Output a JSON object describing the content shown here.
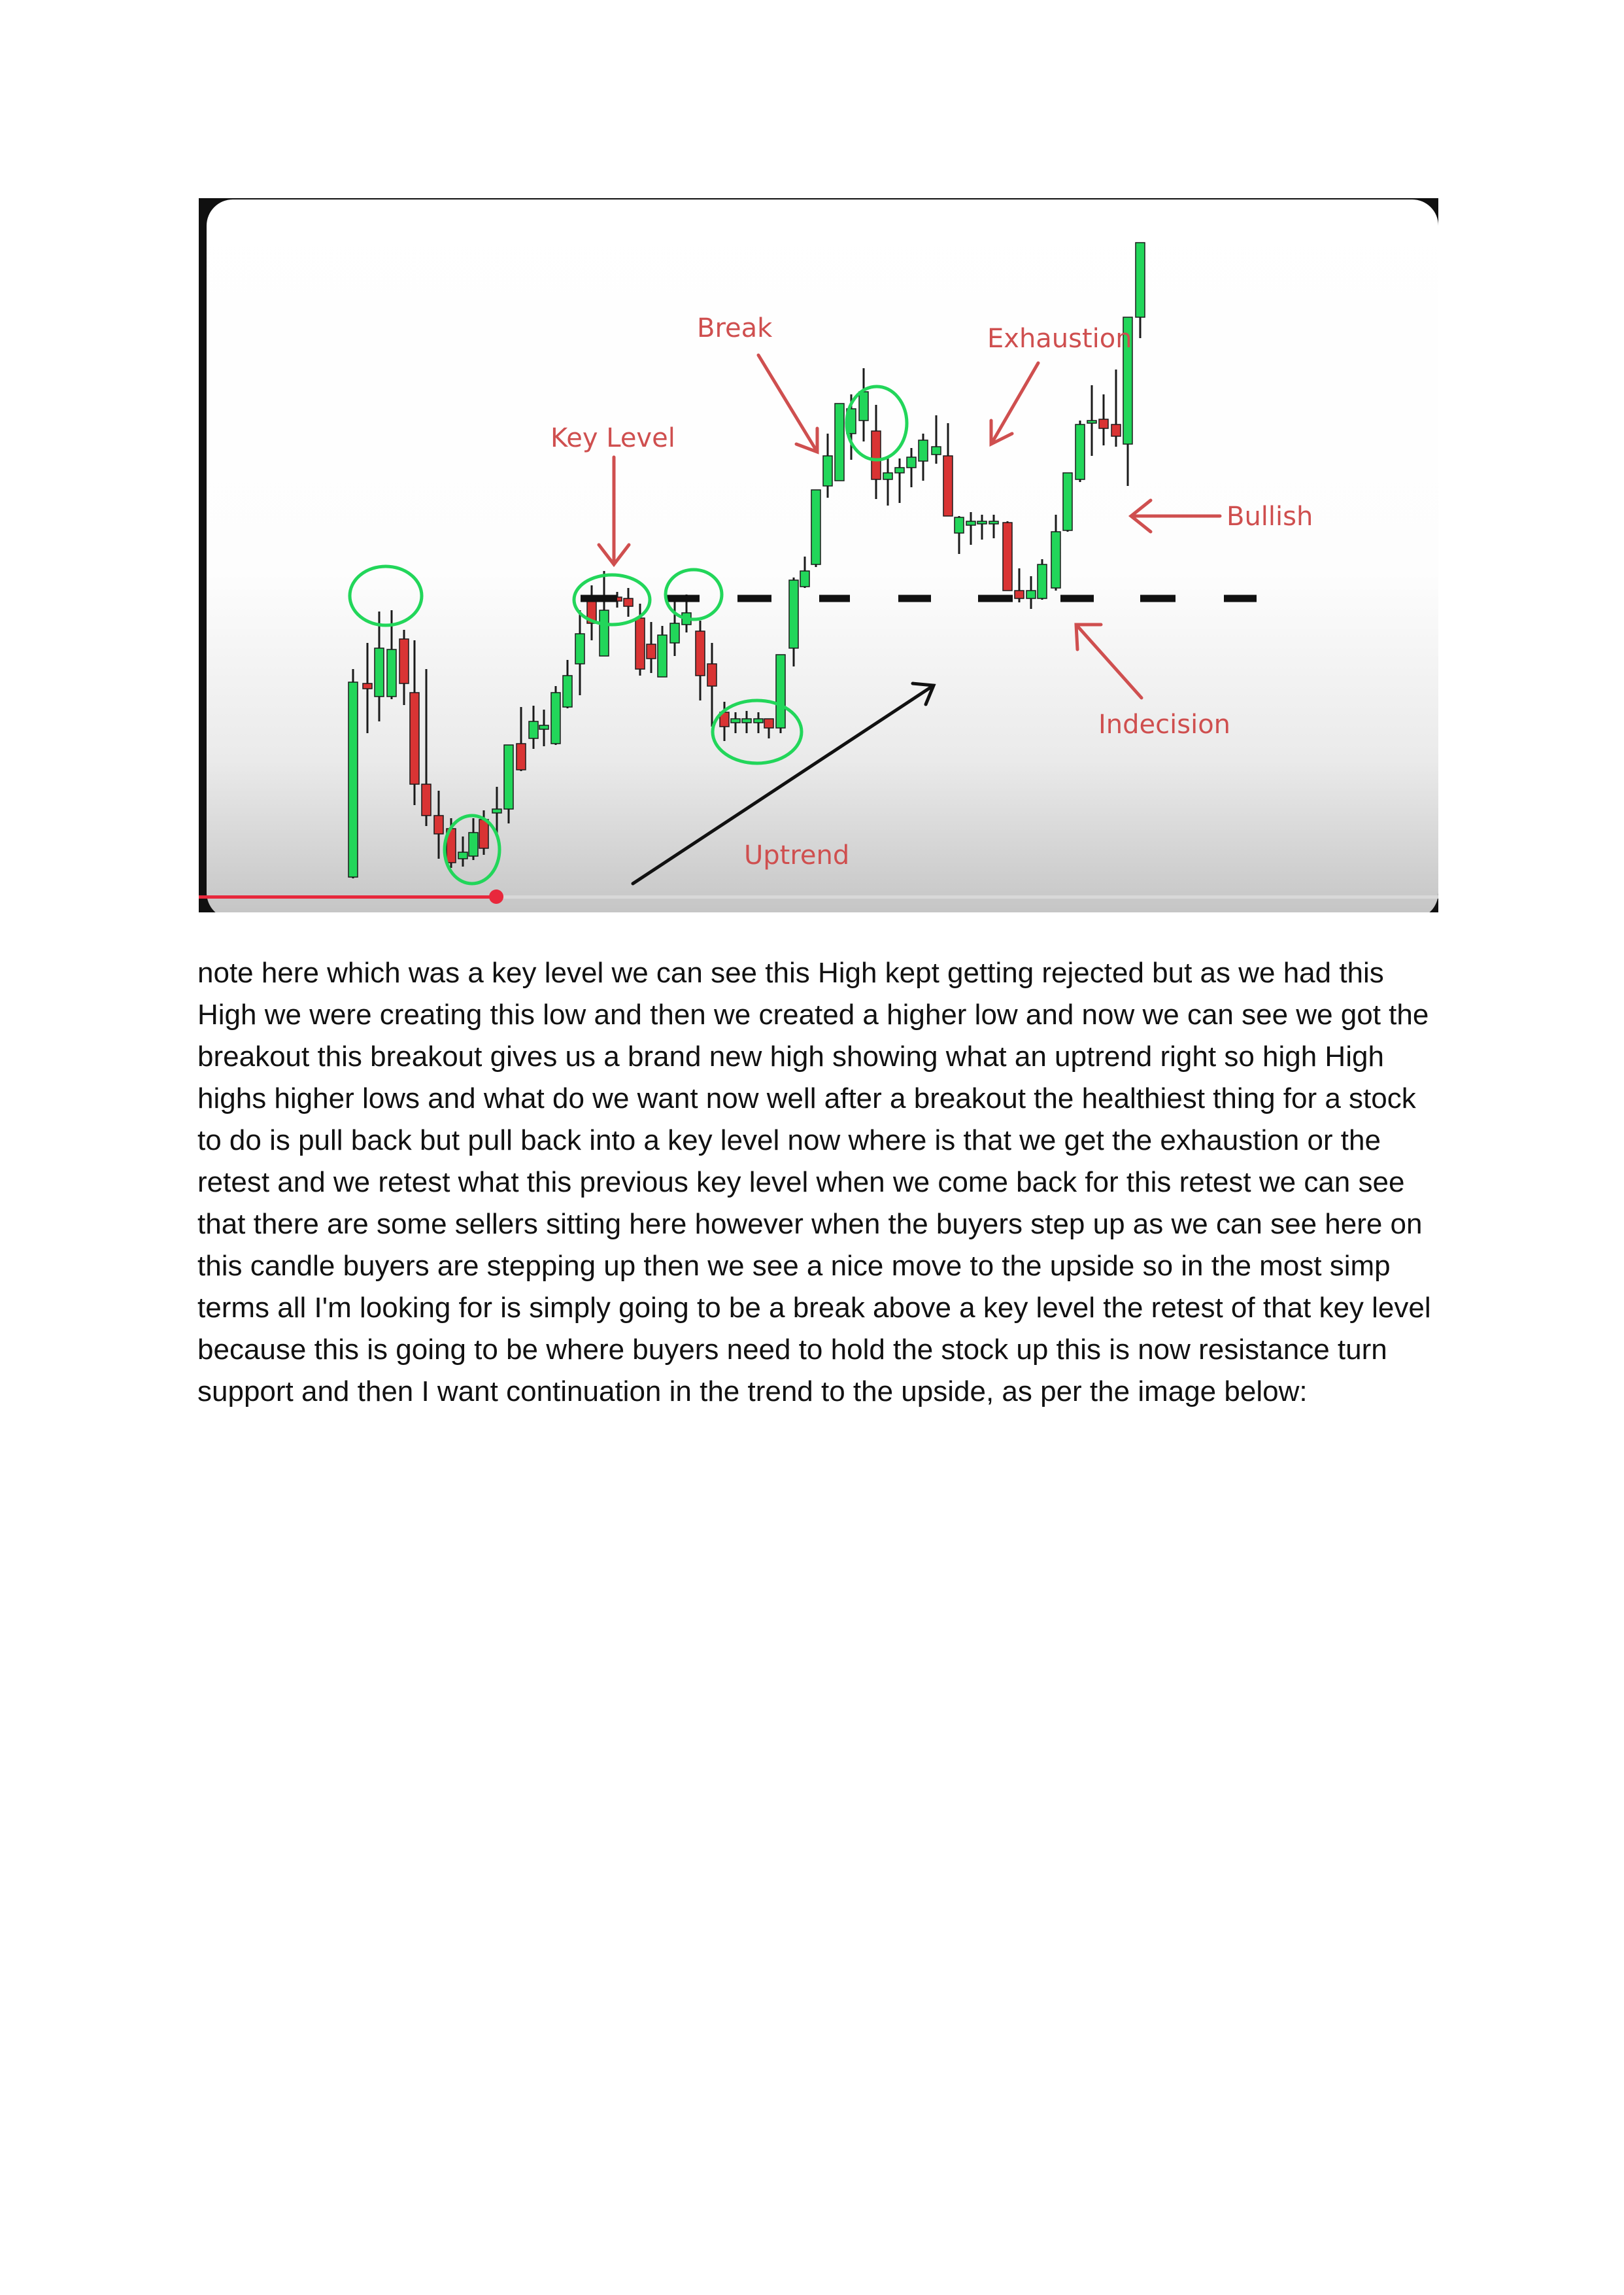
{
  "figure": {
    "labels": {
      "break": "Break",
      "exhaustion": "Exhaustion",
      "key_level": "Key Level",
      "bullish": "Bullish",
      "indecision": "Indecision",
      "uptrend": "Uptrend"
    },
    "colors": {
      "bullish_candle": "#22d65a",
      "bearish_candle": "#d93434",
      "annotation": "#cf4f4f",
      "highlight_circle": "#22d65a",
      "key_level_line": "#111111",
      "progress_bar": "#e8283c"
    },
    "video_progress": 0.24
  },
  "body": {
    "paragraph": "note here which was a key level we can see this High kept getting rejected but as we had this High we were creating this low and then we created a higher low and now we can see we got the breakout this breakout gives us a brand new high showing what an uptrend right so high High highs higher lows and what do we want now well after a breakout the healthiest thing for a stock to do is pull back but pull back into a key level now where is that we get the exhaustion or the retest and we retest what this previous key level when we come back for this retest we can see that there are some sellers sitting here however when the buyers step up as we can see here on this candle buyers are stepping up then we see a nice move to the upside so in the most simp terms all I'm looking for is simply going to be a break above a key level the retest of that key level because this is going to be where buyers need to hold the stock up this is now resistance turn support and then I want continuation in the trend to the upside, as per the image below:"
  }
}
